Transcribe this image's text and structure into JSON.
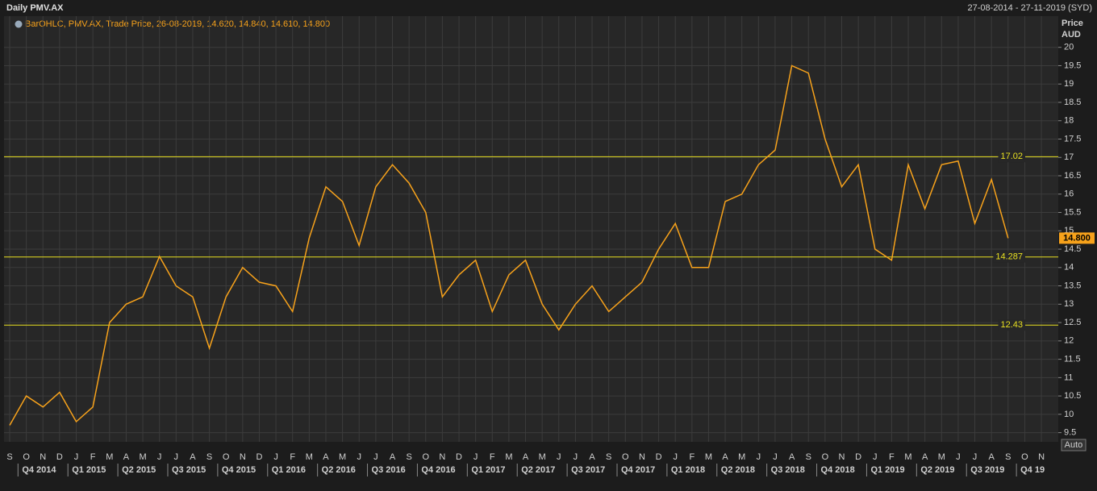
{
  "chart_data": {
    "type": "line",
    "title": "Daily PMV.AX",
    "date_range": "27-08-2014 - 27-11-2019 (SYD)",
    "y_axis_label": [
      "Price",
      "AUD"
    ],
    "scale_button": "Auto",
    "categories": [
      "S",
      "O",
      "N",
      "D",
      "J",
      "F",
      "M",
      "A",
      "M",
      "J",
      "J",
      "A",
      "S",
      "O",
      "N",
      "D",
      "J",
      "F",
      "M",
      "A",
      "M",
      "J",
      "J",
      "A",
      "S",
      "O",
      "N",
      "D",
      "J",
      "F",
      "M",
      "A",
      "M",
      "J",
      "J",
      "A",
      "S",
      "O",
      "N",
      "D",
      "J",
      "F",
      "M",
      "A",
      "M",
      "J",
      "J",
      "A",
      "S",
      "O",
      "N",
      "D",
      "J",
      "F",
      "M",
      "A",
      "M",
      "J",
      "J",
      "A",
      "S",
      "O",
      "N"
    ],
    "quarters": [
      "Q4 2014",
      "Q1 2015",
      "Q2 2015",
      "Q3 2015",
      "Q4 2015",
      "Q1 2016",
      "Q2 2016",
      "Q3 2016",
      "Q4 2016",
      "Q1 2017",
      "Q2 2017",
      "Q3 2017",
      "Q4 2017",
      "Q1 2018",
      "Q2 2018",
      "Q3 2018",
      "Q4 2018",
      "Q1 2019",
      "Q2 2019",
      "Q3 2019",
      "Q4 19"
    ],
    "series": [
      {
        "name": "BarOHLC, PMV.AX, Trade Price, 26-08-2019, 14.620, 14.840, 14.610, 14.800",
        "color": "#f7a21b",
        "values": [
          9.7,
          10.5,
          10.2,
          10.6,
          9.8,
          10.2,
          12.5,
          13.0,
          13.2,
          14.3,
          13.5,
          13.2,
          11.8,
          13.2,
          14.0,
          13.6,
          13.5,
          12.8,
          14.8,
          16.2,
          15.8,
          14.6,
          16.2,
          16.8,
          16.3,
          15.5,
          13.2,
          13.8,
          14.2,
          12.8,
          13.8,
          14.2,
          13.0,
          12.3,
          13.0,
          13.5,
          12.8,
          13.2,
          13.6,
          14.5,
          15.2,
          14.0,
          14.0,
          15.8,
          16.0,
          16.8,
          17.2,
          19.5,
          19.3,
          17.5,
          16.2,
          16.8,
          14.5,
          14.2,
          16.8,
          15.6,
          16.8,
          16.9,
          15.2,
          16.4,
          14.8,
          null,
          null
        ]
      }
    ],
    "hlines": [
      17.02,
      14.287,
      12.43
    ],
    "hline_color": "#e8e020",
    "last_price": {
      "value": 14.8,
      "label": "14.800"
    },
    "ylim": [
      9.25,
      20.85
    ],
    "yticks": [
      9.5,
      10,
      10.5,
      11,
      11.5,
      12,
      12.5,
      13,
      13.5,
      14,
      14.5,
      15,
      15.5,
      16,
      16.5,
      17,
      17.5,
      18,
      18.5,
      19,
      19.5,
      20
    ],
    "grid": true
  }
}
